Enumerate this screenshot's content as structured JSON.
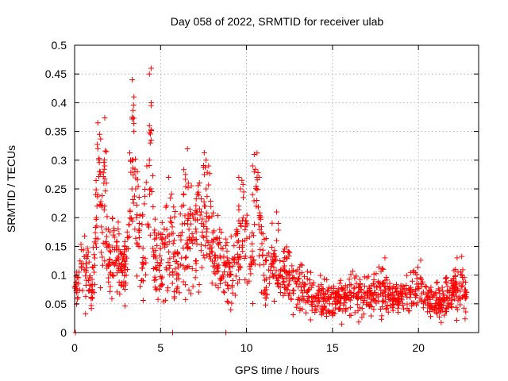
{
  "chart_data": {
    "type": "scatter",
    "title": "Day 058 of 2022, SRMTID for receiver ulab",
    "xlabel": "GPS time / hours",
    "ylabel": "SRMTID / TECUs",
    "xlim": [
      0,
      23.5
    ],
    "ylim": [
      0,
      0.5
    ],
    "x_ticks": [
      0,
      5,
      10,
      15,
      20
    ],
    "x_tick_labels": [
      "0",
      "5",
      "10",
      "15",
      "20"
    ],
    "y_ticks": [
      0,
      0.05,
      0.1,
      0.15,
      0.2,
      0.25,
      0.3,
      0.35,
      0.4,
      0.45,
      0.5
    ],
    "y_tick_labels": [
      "0",
      "0.05",
      "0.1",
      "0.15",
      "0.2",
      "0.25",
      "0.3",
      "0.35",
      "0.4",
      "0.45",
      "0.5"
    ],
    "grid": true,
    "marker": "plus",
    "color": "#ff0000",
    "x_data_range": [
      0,
      22.8
    ],
    "series": [
      {
        "name": "SRMTID",
        "description": "dense scatter of ~2200 points; representative envelope",
        "x": [
          0,
          0.5,
          1.0,
          1.3,
          1.7,
          2.0,
          2.5,
          3.0,
          3.4,
          3.6,
          4.0,
          4.4,
          4.6,
          5.0,
          5.5,
          6.0,
          6.4,
          7.0,
          7.6,
          8.0,
          8.5,
          9.0,
          9.5,
          9.8,
          10.3,
          10.6,
          11.0,
          11.5,
          12.0,
          12.5,
          13.0,
          13.5,
          14.0,
          14.5,
          15.0,
          15.5,
          16.0,
          16.5,
          17.0,
          17.5,
          18.0,
          18.5,
          19.0,
          19.5,
          20.0,
          20.5,
          21.0,
          21.5,
          22.0,
          22.5,
          22.8
        ],
        "values": [
          0.08,
          0.12,
          0.07,
          0.22,
          0.26,
          0.12,
          0.13,
          0.1,
          0.3,
          0.2,
          0.12,
          0.33,
          0.14,
          0.12,
          0.17,
          0.12,
          0.19,
          0.16,
          0.22,
          0.14,
          0.13,
          0.1,
          0.13,
          0.2,
          0.12,
          0.23,
          0.1,
          0.12,
          0.11,
          0.09,
          0.08,
          0.07,
          0.06,
          0.06,
          0.05,
          0.06,
          0.07,
          0.07,
          0.06,
          0.07,
          0.07,
          0.06,
          0.06,
          0.07,
          0.08,
          0.06,
          0.05,
          0.06,
          0.07,
          0.08,
          0.07
        ]
      }
    ],
    "spikes": [
      {
        "x": 1.4,
        "values": [
          0.24,
          0.28,
          0.32,
          0.345,
          0.365
        ]
      },
      {
        "x": 1.8,
        "values": [
          0.22,
          0.26,
          0.29,
          0.315
        ]
      },
      {
        "x": 3.4,
        "values": [
          0.3,
          0.35,
          0.375,
          0.41,
          0.44
        ]
      },
      {
        "x": 3.6,
        "values": [
          0.25,
          0.28
        ]
      },
      {
        "x": 4.4,
        "values": [
          0.3,
          0.335,
          0.36,
          0.395,
          0.45,
          0.46
        ]
      },
      {
        "x": 6.4,
        "values": [
          0.24,
          0.275
        ]
      },
      {
        "x": 7.6,
        "values": [
          0.22,
          0.25,
          0.275,
          0.3
        ]
      },
      {
        "x": 9.6,
        "values": [
          0.22,
          0.25,
          0.27
        ]
      },
      {
        "x": 10.4,
        "values": [
          0.24,
          0.28,
          0.29,
          0.31
        ]
      },
      {
        "x": 11.8,
        "values": [
          0.16,
          0.19,
          0.21
        ]
      },
      {
        "x": 18.0,
        "values": [
          0.11,
          0.13
        ]
      },
      {
        "x": 22.2,
        "values": [
          0.11,
          0.13
        ]
      }
    ],
    "baseline_markers_x": [
      0.05,
      5.7,
      8.8
    ]
  }
}
